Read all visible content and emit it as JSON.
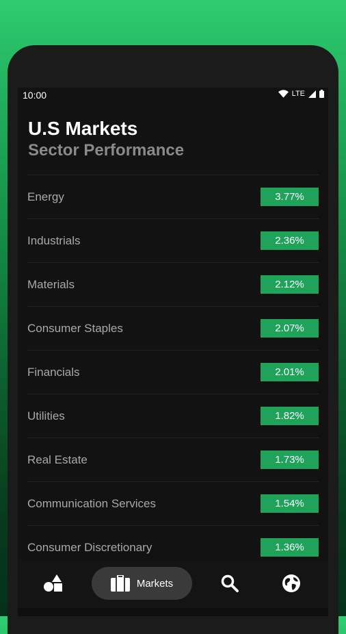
{
  "status_bar": {
    "time": "10:00",
    "network": "LTE"
  },
  "header": {
    "title": "U.S Markets",
    "subtitle": "Sector Performance"
  },
  "sectors": [
    {
      "name": "Energy",
      "change": "3.77%"
    },
    {
      "name": "Industrials",
      "change": "2.36%"
    },
    {
      "name": "Materials",
      "change": "2.12%"
    },
    {
      "name": "Consumer Staples",
      "change": "2.07%"
    },
    {
      "name": "Financials",
      "change": "2.01%"
    },
    {
      "name": "Utilities",
      "change": "1.82%"
    },
    {
      "name": "Real Estate",
      "change": "1.73%"
    },
    {
      "name": "Communication Services",
      "change": "1.54%"
    },
    {
      "name": "Consumer Discretionary",
      "change": "1.36%"
    }
  ],
  "nav": {
    "items": [
      {
        "icon": "shapes-icon"
      },
      {
        "icon": "briefcase-icon",
        "label": "Markets",
        "active": true
      },
      {
        "icon": "search-icon"
      },
      {
        "icon": "globe-icon"
      }
    ]
  },
  "colors": {
    "accent": "#1fa35a",
    "background": "#121212"
  }
}
